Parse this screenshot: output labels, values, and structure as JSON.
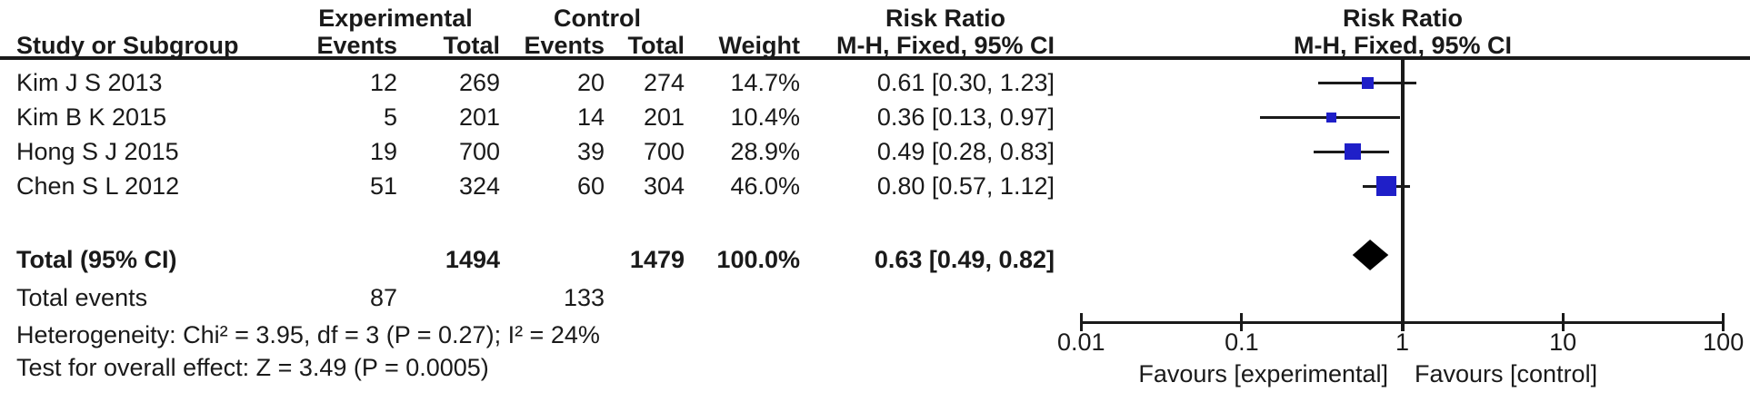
{
  "table": {
    "group_headers": {
      "experimental": "Experimental",
      "control": "Control",
      "risk_ratio": "Risk Ratio"
    },
    "col_headers": {
      "study": "Study or Subgroup",
      "events": "Events",
      "total": "Total",
      "weight": "Weight",
      "mh": "M-H, Fixed, 95% CI"
    },
    "rows": [
      {
        "study": "Kim J S 2013",
        "e_events": "12",
        "e_total": "269",
        "c_events": "20",
        "c_total": "274",
        "weight": "14.7%",
        "rr_ci": "0.61 [0.30, 1.23]"
      },
      {
        "study": "Kim B K 2015",
        "e_events": "5",
        "e_total": "201",
        "c_events": "14",
        "c_total": "201",
        "weight": "10.4%",
        "rr_ci": "0.36 [0.13, 0.97]"
      },
      {
        "study": "Hong S J 2015",
        "e_events": "19",
        "e_total": "700",
        "c_events": "39",
        "c_total": "700",
        "weight": "28.9%",
        "rr_ci": "0.49 [0.28, 0.83]"
      },
      {
        "study": "Chen S L 2012",
        "e_events": "51",
        "e_total": "324",
        "c_events": "60",
        "c_total": "304",
        "weight": "46.0%",
        "rr_ci": "0.80 [0.57, 1.12]"
      }
    ],
    "total_row": {
      "label": "Total (95% CI)",
      "e_total": "1494",
      "c_total": "1479",
      "weight": "100.0%",
      "rr_ci": "0.63 [0.49, 0.82]"
    },
    "total_events": {
      "label": "Total events",
      "experimental": "87",
      "control": "133"
    },
    "stats": {
      "heterogeneity": "Heterogeneity: Chi² = 3.95, df = 3 (P = 0.27); I² = 24%",
      "overall_effect": "Test for overall effect: Z = 3.49 (P = 0.0005)"
    }
  },
  "chart_data": {
    "type": "forest",
    "effect_measure": "Risk Ratio",
    "method": "M-H, Fixed, 95% CI",
    "x_axis": {
      "scale": "log",
      "range": [
        0.01,
        100
      ],
      "ticks": [
        0.01,
        0.1,
        1,
        10,
        100
      ],
      "tick_labels": [
        "0.01",
        "0.1",
        "1",
        "10",
        "100"
      ]
    },
    "studies": [
      {
        "name": "Kim J S 2013",
        "rr": 0.61,
        "ci_low": 0.3,
        "ci_high": 1.23,
        "weight_pct": 14.7
      },
      {
        "name": "Kim B K 2015",
        "rr": 0.36,
        "ci_low": 0.13,
        "ci_high": 0.97,
        "weight_pct": 10.4
      },
      {
        "name": "Hong S J 2015",
        "rr": 0.49,
        "ci_low": 0.28,
        "ci_high": 0.83,
        "weight_pct": 28.9
      },
      {
        "name": "Chen S L 2012",
        "rr": 0.8,
        "ci_low": 0.57,
        "ci_high": 1.12,
        "weight_pct": 46.0
      }
    ],
    "summary": {
      "label": "Total (95% CI)",
      "rr": 0.63,
      "ci_low": 0.49,
      "ci_high": 0.82
    },
    "footer_left": "Favours [experimental]",
    "footer_right": "Favours [control]",
    "colors": {
      "marker": "#1f1fc8",
      "summary": "#000000",
      "line": "#1a1a1a"
    }
  }
}
